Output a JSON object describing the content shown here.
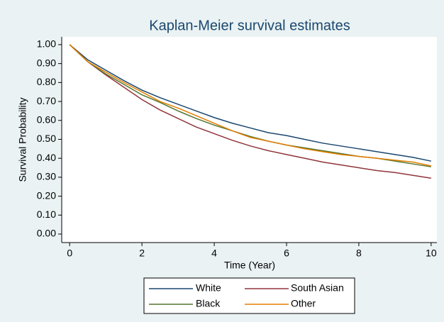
{
  "chart_data": {
    "type": "line",
    "title": "Kaplan-Meier survival estimates",
    "x_label": "Time (Year)",
    "y_label": "Survival Probability",
    "x": [
      0,
      0.5,
      1,
      1.5,
      2,
      2.5,
      3,
      3.5,
      4,
      4.5,
      5,
      5.5,
      6,
      6.5,
      7,
      7.5,
      8,
      8.5,
      9,
      9.5,
      10
    ],
    "series": [
      {
        "name": "White",
        "color": "#1a476f",
        "values": [
          1.0,
          0.92,
          0.865,
          0.81,
          0.76,
          0.72,
          0.685,
          0.65,
          0.615,
          0.585,
          0.56,
          0.535,
          0.52,
          0.5,
          0.48,
          0.465,
          0.45,
          0.435,
          0.42,
          0.405,
          0.385
        ]
      },
      {
        "name": "South Asian",
        "color": "#90353b",
        "values": [
          1.0,
          0.91,
          0.84,
          0.775,
          0.71,
          0.655,
          0.61,
          0.565,
          0.53,
          0.495,
          0.465,
          0.44,
          0.42,
          0.4,
          0.38,
          0.365,
          0.35,
          0.335,
          0.325,
          0.31,
          0.295
        ]
      },
      {
        "name": "Black",
        "color": "#55752f",
        "values": [
          1.0,
          0.91,
          0.845,
          0.79,
          0.735,
          0.695,
          0.65,
          0.61,
          0.575,
          0.545,
          0.515,
          0.49,
          0.47,
          0.455,
          0.44,
          0.425,
          0.41,
          0.4,
          0.385,
          0.37,
          0.355
        ]
      },
      {
        "name": "Other",
        "color": "#e37e00",
        "values": [
          1.0,
          0.91,
          0.855,
          0.8,
          0.75,
          0.7,
          0.665,
          0.625,
          0.585,
          0.545,
          0.51,
          0.49,
          0.47,
          0.45,
          0.435,
          0.42,
          0.41,
          0.4,
          0.39,
          0.38,
          0.36
        ]
      }
    ],
    "xlim": [
      -0.22,
      10.16
    ],
    "xticks": [
      0,
      2,
      4,
      6,
      8,
      10
    ],
    "ylim": [
      -0.045,
      1.041
    ],
    "yticks": [
      {
        "value": 0,
        "label": "0.00"
      },
      {
        "value": 0.1,
        "label": "0.10"
      },
      {
        "value": 0.2,
        "label": "0.20"
      },
      {
        "value": 0.3,
        "label": "0.30"
      },
      {
        "value": 0.4,
        "label": "0.40"
      },
      {
        "value": 0.5,
        "label": "0.50"
      },
      {
        "value": 0.6,
        "label": "0.60"
      },
      {
        "value": 0.7,
        "label": "0.70"
      },
      {
        "value": 0.8,
        "label": "0.80"
      },
      {
        "value": 0.9,
        "label": "0.90"
      },
      {
        "value": 1,
        "label": "1.00"
      }
    ],
    "grid": false,
    "legend": "bottom"
  }
}
